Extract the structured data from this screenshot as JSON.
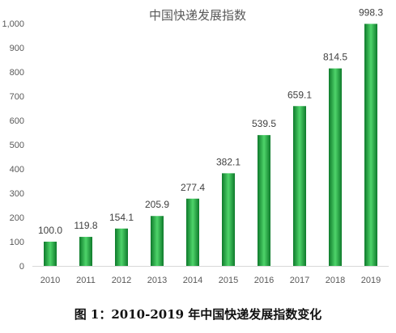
{
  "caption": "图 1：2010-2019 年中国快递发展指数变化",
  "colors": {
    "bar_dark": "#0e7a2b",
    "bar_light": "#4ed46a",
    "axis": "#d9d9d9",
    "text": "#595959"
  },
  "chart_data": {
    "type": "bar",
    "title": "中国快递发展指数",
    "xlabel": "",
    "ylabel": "",
    "categories": [
      "2010",
      "2011",
      "2012",
      "2013",
      "2014",
      "2015",
      "2016",
      "2017",
      "2018",
      "2019"
    ],
    "values": [
      100.0,
      119.8,
      154.1,
      205.9,
      277.4,
      382.1,
      539.5,
      659.1,
      814.5,
      998.3
    ],
    "value_labels": [
      "100.0",
      "119.8",
      "154.1",
      "205.9",
      "277.4",
      "382.1",
      "539.5",
      "659.1",
      "814.5",
      "998.3"
    ],
    "ylim": [
      0,
      1000
    ],
    "yticks": [
      0,
      100,
      200,
      300,
      400,
      500,
      600,
      700,
      800,
      900,
      1000
    ],
    "ytick_labels": [
      "0",
      "100",
      "200",
      "300",
      "400",
      "500",
      "600",
      "700",
      "800",
      "900",
      "1,000"
    ],
    "grid": false,
    "legend": "none"
  }
}
